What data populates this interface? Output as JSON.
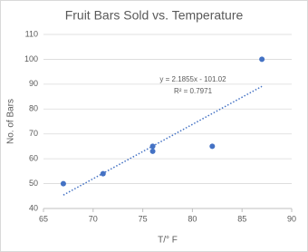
{
  "chart_data": {
    "type": "scatter",
    "title": "Fruit Bars Sold vs. Temperature",
    "x_label": "T/° F",
    "y_label": "No. of Bars",
    "series": [
      {
        "color": "#4472c4",
        "x": [
          67,
          71,
          76,
          76,
          82,
          87
        ],
        "values": [
          50,
          54,
          63,
          65,
          65,
          100
        ]
      }
    ],
    "trendline": {
      "slope": 2.1855,
      "intercept": -101.02,
      "equation": "y = 2.1855x - 101.02",
      "r2_label": "R² = 0.7971"
    },
    "xlim": [
      65,
      90
    ],
    "xticks": [
      65,
      70,
      75,
      80,
      85,
      90
    ],
    "ylim": [
      40,
      110
    ],
    "yticks": [
      40,
      50,
      60,
      70,
      80,
      90,
      100,
      110
    ],
    "grid": true
  }
}
